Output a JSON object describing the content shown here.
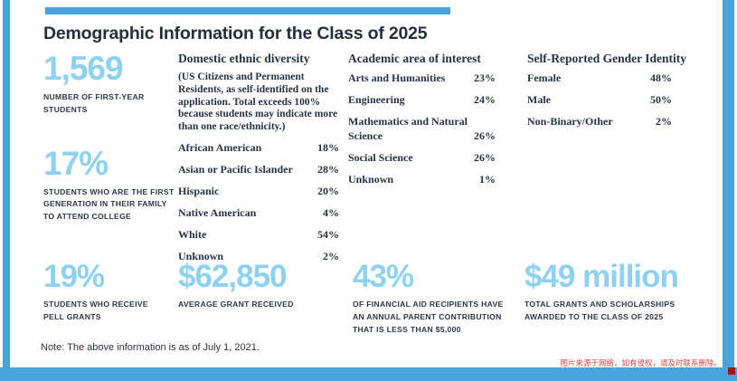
{
  "page": {
    "title": "Demographic Information for the Class of 2025",
    "note": "Note: The above information is as of July 1, 2021.",
    "watermark": "图片来源于网络，如有侵权，请及时联系删除。"
  },
  "colors": {
    "accent_blue": "#4aa3da",
    "light_blue_numbers": "#8ed1f1",
    "navy_text": "#2b3847",
    "watermark_red": "#e04343",
    "corner_red": "#a31515"
  },
  "stats_top": [
    {
      "value": "1,569",
      "label": "NUMBER OF FIRST-YEAR STUDENTS"
    },
    {
      "value": "17%",
      "label": "STUDENTS WHO ARE THE FIRST GENERATION IN THEIR FAMILY TO ATTEND COLLEGE"
    }
  ],
  "ethnic": {
    "heading": "Domestic ethnic diversity",
    "note": "(US Citizens and Permanent Residents, as self-identified on the application. Total exceeds 100% because students may indicate more than one race/ethnicity.)",
    "rows": [
      {
        "label": "African American",
        "value": "18%"
      },
      {
        "label": "Asian or Pacific Islander",
        "value": "28%"
      },
      {
        "label": "Hispanic",
        "value": "20%"
      },
      {
        "label": "Native American",
        "value": "4%"
      },
      {
        "label": "White",
        "value": "54%"
      },
      {
        "label": "Unknown",
        "value": "2%"
      }
    ]
  },
  "academic": {
    "heading": "Academic area of interest",
    "rows": [
      {
        "label": "Arts and Humanities",
        "value": "23%"
      },
      {
        "label": "Engineering",
        "value": "24%"
      },
      {
        "label": "Mathematics and Natural Science",
        "value": "26%"
      },
      {
        "label": "Social Science",
        "value": "26%"
      },
      {
        "label": "Unknown",
        "value": "1%"
      }
    ]
  },
  "gender": {
    "heading": "Self-Reported Gender Identity",
    "rows": [
      {
        "label": "Female",
        "value": "48%"
      },
      {
        "label": "Male",
        "value": "50%"
      },
      {
        "label": "Non-Binary/Other",
        "value": "2%"
      }
    ]
  },
  "stats_bottom": [
    {
      "value": "19%",
      "label": "STUDENTS WHO RECEIVE PELL GRANTS"
    },
    {
      "value": "$62,850",
      "label": "AVERAGE GRANT RECEIVED"
    },
    {
      "value": "43%",
      "label": "OF FINANCIAL AID RECIPIENTS HAVE AN ANNUAL PARENT CONTRIBUTION THAT IS LESS THAN $5,000"
    },
    {
      "value": "$49 million",
      "label": "TOTAL GRANTS AND SCHOLARSHIPS AWARDED TO THE CLASS OF 2025"
    }
  ]
}
